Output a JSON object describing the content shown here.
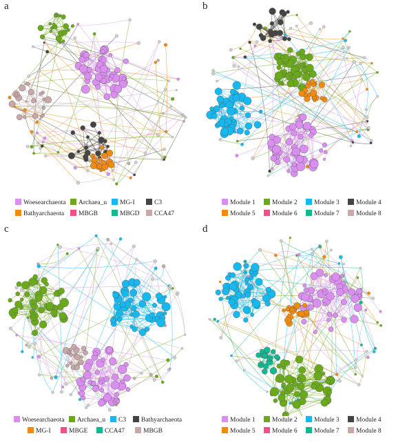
{
  "panels": [
    {
      "letter": "a",
      "legend": [
        {
          "label": "Woesearchaeota",
          "color": "#d98ef0"
        },
        {
          "label": "Archaea_u",
          "color": "#6aaa1a"
        },
        {
          "label": "MG-I",
          "color": "#15b8ef"
        },
        {
          "label": "C3",
          "color": "#444444"
        },
        {
          "label": "Bathyarchaeota",
          "color": "#f08a10"
        },
        {
          "label": "MBGB",
          "color": "#f0508a"
        },
        {
          "label": "MBGD",
          "color": "#12b890"
        },
        {
          "label": "CCA47",
          "color": "#c8a8a8"
        }
      ],
      "clusters": [
        {
          "color": "#d98ef0",
          "big": true
        },
        {
          "color": "#6aaa1a",
          "big": false
        },
        {
          "color": "#c8a8a8",
          "big": false
        },
        {
          "color": "#444444",
          "big": false
        },
        {
          "color": "#f08a10",
          "big": false
        }
      ]
    },
    {
      "letter": "b",
      "legend": [
        {
          "label": "Module 1",
          "color": "#d98ef0"
        },
        {
          "label": "Module 2",
          "color": "#6aaa1a"
        },
        {
          "label": "Module 3",
          "color": "#15b8ef"
        },
        {
          "label": "Module 4",
          "color": "#444444"
        },
        {
          "label": "Module 5",
          "color": "#f08a10"
        },
        {
          "label": "Module 6",
          "color": "#f0508a"
        },
        {
          "label": "Module 7",
          "color": "#12b890"
        },
        {
          "label": "Module 8",
          "color": "#c8a8a8"
        }
      ],
      "clusters": [
        {
          "color": "#6aaa1a",
          "big": true
        },
        {
          "color": "#15b8ef",
          "big": true
        },
        {
          "color": "#d98ef0",
          "big": true
        },
        {
          "color": "#444444",
          "big": false
        },
        {
          "color": "#f08a10",
          "big": false
        }
      ]
    },
    {
      "letter": "c",
      "legend": [
        {
          "label": "Woesearchaeota",
          "color": "#d98ef0"
        },
        {
          "label": "Archaea_u",
          "color": "#6aaa1a"
        },
        {
          "label": "C3",
          "color": "#15b8ef"
        },
        {
          "label": "Bathyarchaeota",
          "color": "#444444"
        },
        {
          "label": "MG-I",
          "color": "#f08a10"
        },
        {
          "label": "MBGE",
          "color": "#f0508a"
        },
        {
          "label": "CCA47",
          "color": "#12b890"
        },
        {
          "label": "MBGB",
          "color": "#c8a8a8"
        }
      ],
      "clusters": [
        {
          "color": "#6aaa1a",
          "big": true
        },
        {
          "color": "#15b8ef",
          "big": true
        },
        {
          "color": "#d98ef0",
          "big": true
        },
        {
          "color": "#c8a8a8",
          "big": false
        }
      ]
    },
    {
      "letter": "d",
      "legend": [
        {
          "label": "Module 1",
          "color": "#d98ef0"
        },
        {
          "label": "Module 2",
          "color": "#6aaa1a"
        },
        {
          "label": "Module 3",
          "color": "#15b8ef"
        },
        {
          "label": "Module 4",
          "color": "#444444"
        },
        {
          "label": "Module 5",
          "color": "#f08a10"
        },
        {
          "label": "Module 6",
          "color": "#f0508a"
        },
        {
          "label": "Module 7",
          "color": "#12b890"
        },
        {
          "label": "Module 8",
          "color": "#c8a8a8"
        }
      ],
      "clusters": [
        {
          "color": "#15b8ef",
          "big": true
        },
        {
          "color": "#d98ef0",
          "big": true
        },
        {
          "color": "#6aaa1a",
          "big": true
        },
        {
          "color": "#f08a10",
          "big": false
        },
        {
          "color": "#12b890",
          "big": false
        }
      ]
    }
  ]
}
